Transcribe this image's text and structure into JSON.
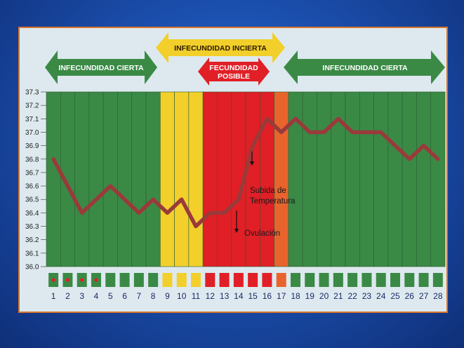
{
  "zones": {
    "infecundidad_cierta_left": "INFECUNDIDAD CIERTA",
    "infecundidad_incierta": "INFECUNDIDAD INCIERTA",
    "fecundidad_posible_line1": "FECUNDIDAD",
    "fecundidad_posible_line2": "POSIBLE",
    "infecundidad_cierta_right": "INFECUNDIDAD CIERTA"
  },
  "annotations": {
    "subida_line1": "Subida de",
    "subida_line2": "Temperatura",
    "ovulacion": "Ovulación"
  },
  "colors": {
    "green": "#3a8a46",
    "yellow": "#f2cf2a",
    "red": "#e11f26",
    "orange": "#e8642c",
    "line": "#9a3a3a"
  },
  "chart_data": {
    "type": "line",
    "x": [
      1,
      2,
      3,
      4,
      5,
      6,
      7,
      8,
      9,
      10,
      11,
      12,
      13,
      14,
      15,
      16,
      17,
      18,
      19,
      20,
      21,
      22,
      23,
      24,
      25,
      26,
      27,
      28
    ],
    "y": [
      36.8,
      36.6,
      36.4,
      36.5,
      36.6,
      36.5,
      36.4,
      36.5,
      36.4,
      36.5,
      36.3,
      36.4,
      36.4,
      36.5,
      36.9,
      37.1,
      37.0,
      37.1,
      37.0,
      37.0,
      37.1,
      37.0,
      37.0,
      37.0,
      36.9,
      36.8,
      36.9,
      36.8
    ],
    "ylim": [
      36.0,
      37.3
    ],
    "yticks": [
      "36.0",
      "36.1",
      "36.2",
      "36.3",
      "36.4",
      "36.5",
      "36.6",
      "36.7",
      "36.8",
      "36.9",
      "37.0",
      "37.1",
      "37.2",
      "37.3"
    ],
    "day_labels": [
      "1",
      "2",
      "3",
      "4",
      "5",
      "6",
      "7",
      "8",
      "9",
      "10",
      "11",
      "12",
      "13",
      "14",
      "15",
      "16",
      "17",
      "18",
      "19",
      "20",
      "21",
      "22",
      "23",
      "24",
      "25",
      "26",
      "27",
      "28"
    ],
    "day_zones": [
      "green",
      "green",
      "green",
      "green",
      "green",
      "green",
      "green",
      "green",
      "yellow",
      "yellow",
      "yellow",
      "red",
      "red",
      "red",
      "red",
      "red",
      "orange",
      "green",
      "green",
      "green",
      "green",
      "green",
      "green",
      "green",
      "green",
      "green",
      "green",
      "green"
    ],
    "menstruation_days": [
      1,
      2,
      3,
      4
    ]
  }
}
